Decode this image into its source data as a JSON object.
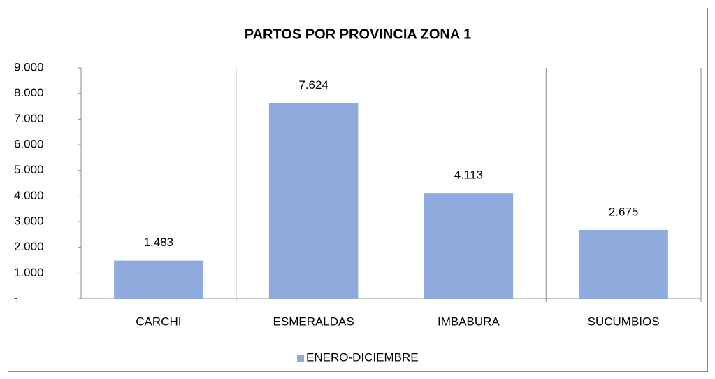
{
  "chart_data": {
    "type": "bar",
    "title": "PARTOS POR PROVINCIA ZONA 1",
    "categories": [
      "CARCHI",
      "ESMERALDAS",
      "IMBABURA",
      "SUCUMBIOS"
    ],
    "series": [
      {
        "name": "ENERO-DICIEMBRE",
        "color": "#8faadc",
        "values": [
          1483,
          7624,
          4113,
          2675
        ],
        "value_labels": [
          "1.483",
          "7.624",
          "4.113",
          "2.675"
        ]
      }
    ],
    "ylim": [
      0,
      9000
    ],
    "yticks": [
      {
        "value": 0,
        "label": "-"
      },
      {
        "value": 1000,
        "label": "1.000"
      },
      {
        "value": 2000,
        "label": "2.000"
      },
      {
        "value": 3000,
        "label": "3.000"
      },
      {
        "value": 4000,
        "label": "4.000"
      },
      {
        "value": 5000,
        "label": "5.000"
      },
      {
        "value": 6000,
        "label": "6.000"
      },
      {
        "value": 7000,
        "label": "7.000"
      },
      {
        "value": 8000,
        "label": "8.000"
      },
      {
        "value": 9000,
        "label": "9.000"
      }
    ],
    "legend": "bottom"
  }
}
